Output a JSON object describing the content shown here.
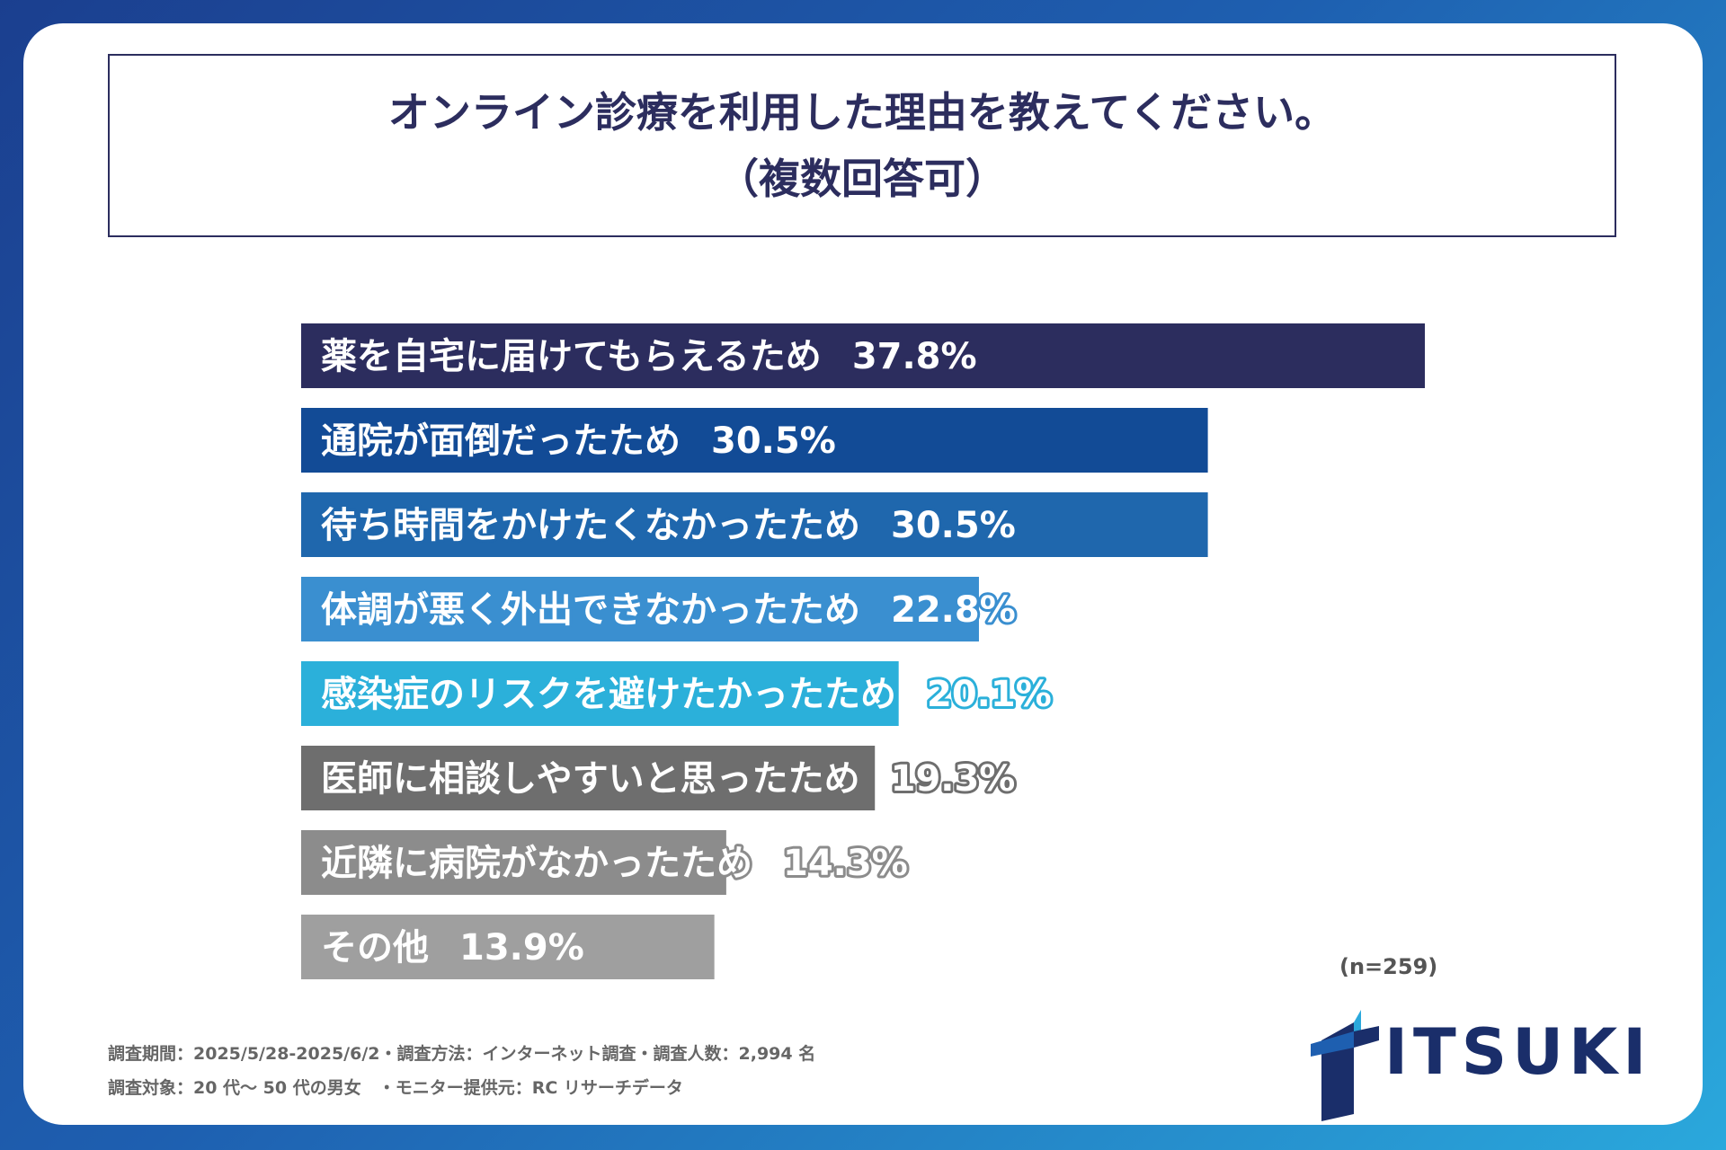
{
  "title": {
    "line1": "オンライン診療を利用した理由を教えてください。",
    "line2": "（複数回答可）"
  },
  "chart_data": {
    "type": "bar",
    "orientation": "horizontal",
    "title": "オンライン診療を利用した理由を教えてください。（複数回答可）",
    "xlabel": "",
    "ylabel": "",
    "unit": "%",
    "categories": [
      "薬を自宅に届けてもらえるため",
      "通院が面倒だったため",
      "待ち時間をかけたくなかったため",
      "体調が悪く外出できなかったため",
      "感染症のリスクを避けたかったため",
      "医師に相談しやすいと思ったため",
      "近隣に病院がなかったため",
      "その他"
    ],
    "values": [
      37.8,
      30.5,
      30.5,
      22.8,
      20.1,
      19.3,
      14.3,
      13.9
    ],
    "colors": [
      "#2c2d5e",
      "#124b96",
      "#1f67ad",
      "#3a8fd0",
      "#2bb0da",
      "#6e6e6e",
      "#8c8c8c",
      "#9f9f9f"
    ],
    "value_labels": [
      "37.8%",
      "30.5%",
      "30.5%",
      "22.8%",
      "20.1%",
      "19.3%",
      "14.3%",
      "13.9%"
    ],
    "grid": false,
    "legend": "none"
  },
  "sample_size": "(n=259)",
  "footnotes": {
    "line1": "調査期間：2025/5/28-2025/6/2・調査方法：インターネット調査・調査人数：2,994 名",
    "line2": "調査対象：20 代～ 50 代の男女　・モニター提供元：RC リサーチデータ"
  },
  "logo": {
    "text": "ITSUKI",
    "color": "#1a2e6a"
  }
}
